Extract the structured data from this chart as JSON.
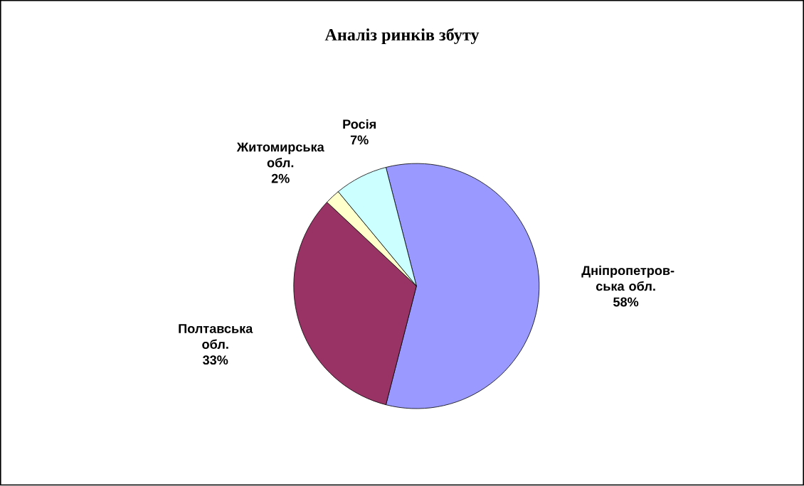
{
  "chart_data": {
    "type": "pie",
    "title": "Аналіз ринків збуту",
    "categories": [
      "Дніпропетров-ська обл.",
      "Полтавська обл.",
      "Житомирська обл.",
      "Росія"
    ],
    "values": [
      58,
      33,
      2,
      7
    ],
    "colors": [
      "#9999ff",
      "#993366",
      "#ffffcc",
      "#ccffff"
    ],
    "value_labels": [
      "58%",
      "33%",
      "2%",
      "7%"
    ]
  }
}
